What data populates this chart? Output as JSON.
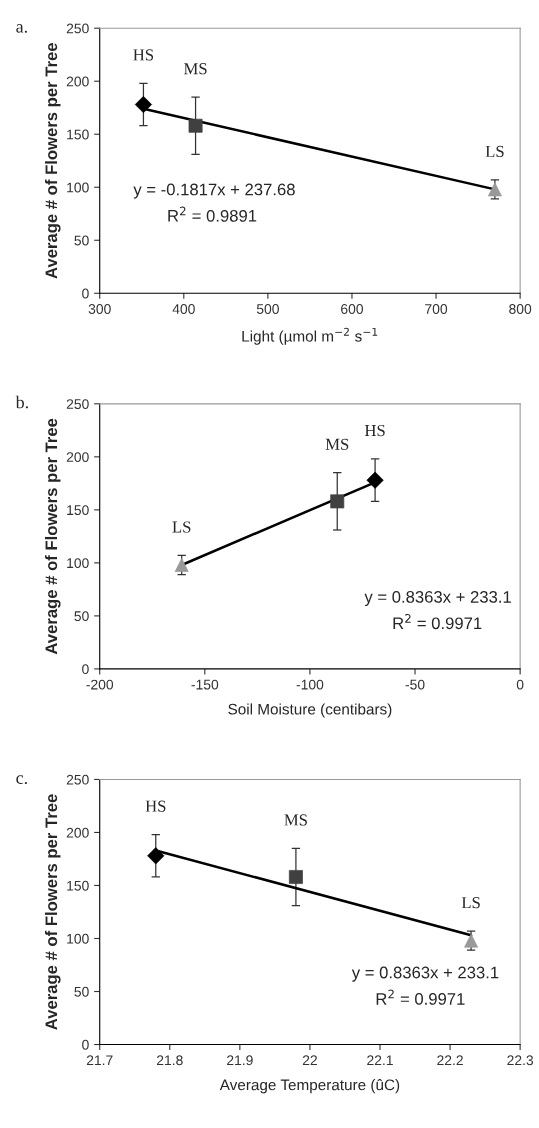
{
  "chart_data": [
    {
      "type": "scatter",
      "title": "a.",
      "xlabel": "Light (µmol m$^{−2}$ s$^{−1}$",
      "ylabel": "Average # of Flowers per Tree",
      "xlim": [
        300,
        800
      ],
      "xticks": [
        300,
        400,
        500,
        600,
        700,
        800
      ],
      "ylim": [
        0,
        250
      ],
      "yticks": [
        0,
        50,
        100,
        150,
        200,
        250
      ],
      "grid": false,
      "legend": false,
      "annotations": [
        "y = -0.1817x + 237.68",
        "R$^{2}$ = 0.9891"
      ],
      "series": [
        {
          "name": "HS",
          "marker": "diamond",
          "color": "#000000",
          "x": [
            352
          ],
          "values": [
            178
          ],
          "errors": [
            20
          ]
        },
        {
          "name": "MS",
          "marker": "square",
          "color": "#404040",
          "x": [
            414
          ],
          "values": [
            158
          ],
          "errors": [
            27
          ]
        },
        {
          "name": "LS",
          "marker": "triangle",
          "color": "#999999",
          "x": [
            770
          ],
          "values": [
            98
          ],
          "errors": [
            9
          ]
        },
        {
          "type": "line",
          "marker": "none",
          "line_style": "solid",
          "color": "#000000",
          "x": [
            352,
            770
          ],
          "values": [
            174,
            98
          ]
        }
      ]
    },
    {
      "type": "scatter",
      "title": "b.",
      "xlabel": "Soil Moisture (centibars)",
      "ylabel": "Average # of Flowers per Tree",
      "xlim": [
        -200,
        0
      ],
      "xticks": [
        -200,
        -150,
        -100,
        -50,
        0
      ],
      "ylim": [
        0,
        250
      ],
      "yticks": [
        0,
        50,
        100,
        150,
        200,
        250
      ],
      "grid": false,
      "legend": false,
      "annotations": [
        "y = 0.8363x + 233.1",
        "R$^{2}$ = 0.9971"
      ],
      "series": [
        {
          "name": "HS",
          "marker": "diamond",
          "color": "#000000",
          "x": [
            -69
          ],
          "values": [
            178
          ],
          "errors": [
            20
          ]
        },
        {
          "name": "MS",
          "marker": "square",
          "color": "#404040",
          "x": [
            -87
          ],
          "values": [
            158
          ],
          "errors": [
            27
          ]
        },
        {
          "name": "LS",
          "marker": "triangle",
          "color": "#999999",
          "x": [
            -161
          ],
          "values": [
            98
          ],
          "errors": [
            9
          ]
        },
        {
          "type": "line",
          "marker": "none",
          "line_style": "solid",
          "color": "#000000",
          "x": [
            -161,
            -69
          ],
          "values": [
            98,
            176
          ]
        }
      ]
    },
    {
      "type": "scatter",
      "title": "c.",
      "xlabel": "Average Temperature (ûC)",
      "ylabel": "Average # of Flowers per Tree",
      "xlim": [
        21.7,
        22.3
      ],
      "xticks": [
        21.7,
        21.8,
        21.9,
        22,
        22.1,
        22.2,
        22.3
      ],
      "ylim": [
        0,
        250
      ],
      "yticks": [
        0,
        50,
        100,
        150,
        200,
        250
      ],
      "grid": false,
      "legend": false,
      "annotations": [
        "y = 0.8363x + 233.1",
        "R$^{2}$ = 0.9971"
      ],
      "series": [
        {
          "name": "HS",
          "marker": "diamond",
          "color": "#000000",
          "x": [
            21.78
          ],
          "values": [
            178
          ],
          "errors": [
            20
          ]
        },
        {
          "name": "MS",
          "marker": "square",
          "color": "#404040",
          "x": [
            21.98
          ],
          "values": [
            158
          ],
          "errors": [
            27
          ]
        },
        {
          "name": "LS",
          "marker": "triangle",
          "color": "#999999",
          "x": [
            22.23
          ],
          "values": [
            98
          ],
          "errors": [
            9
          ]
        },
        {
          "type": "line",
          "marker": "none",
          "line_style": "solid",
          "color": "#000000",
          "x": [
            21.78,
            22.23
          ],
          "values": [
            183,
            103
          ]
        }
      ]
    }
  ]
}
